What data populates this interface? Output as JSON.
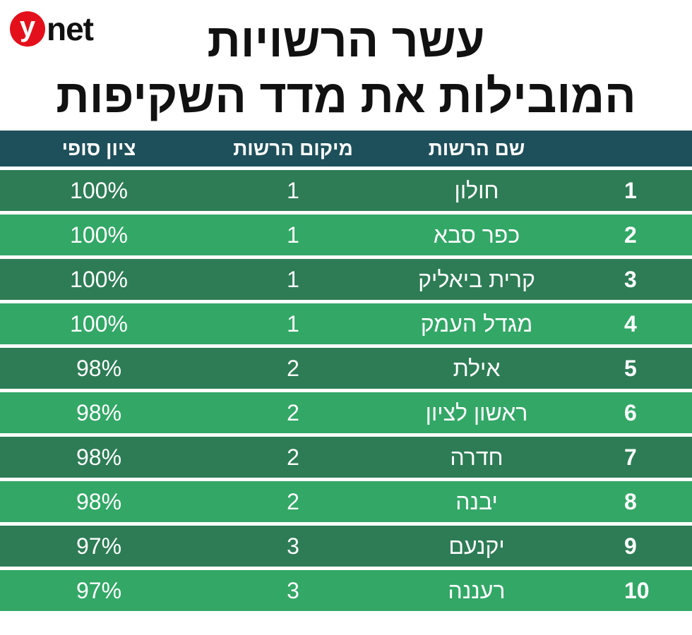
{
  "logo": {
    "mark": "y",
    "text": "net"
  },
  "header": {
    "title": [
      "עשר הרשויות",
      "המובילות את מדד השקיפות"
    ]
  },
  "table": {
    "columns": [
      "",
      "שם הרשות",
      "מיקום הרשות",
      "ציון סופי"
    ],
    "rows": [
      [
        "1",
        "חולון",
        "1",
        "100%"
      ],
      [
        "2",
        "כפר סבא",
        "1",
        "100%"
      ],
      [
        "3",
        "קרית ביאליק",
        "1",
        "100%"
      ],
      [
        "4",
        "מגדל העמק",
        "1",
        "100%"
      ],
      [
        "5",
        "אילת",
        "2",
        "98%"
      ],
      [
        "6",
        "ראשון לציון",
        "2",
        "98%"
      ],
      [
        "7",
        "חדרה",
        "2",
        "98%"
      ],
      [
        "8",
        "יבנה",
        "2",
        "98%"
      ],
      [
        "9",
        "יקנעם",
        "3",
        "97%"
      ],
      [
        "10",
        "רעננה",
        "3",
        "97%"
      ]
    ]
  }
}
